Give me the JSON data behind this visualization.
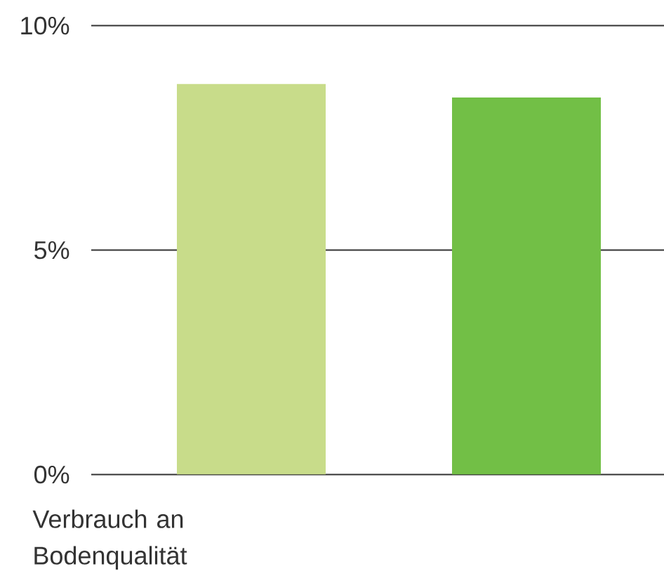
{
  "chart_data": {
    "type": "bar",
    "xlabel": "Verbrauch an Bodenqualität",
    "categories": [
      null,
      null
    ],
    "values": [
      8.7,
      8.4
    ],
    "colors": [
      "#c8dc8a",
      "#72bf46"
    ],
    "ylim": [
      0,
      10
    ],
    "yticks": [
      {
        "value": 0,
        "label": "0%"
      },
      {
        "value": 5,
        "label": "5%"
      },
      {
        "value": 10,
        "label": "10%"
      }
    ],
    "grid": "y"
  }
}
